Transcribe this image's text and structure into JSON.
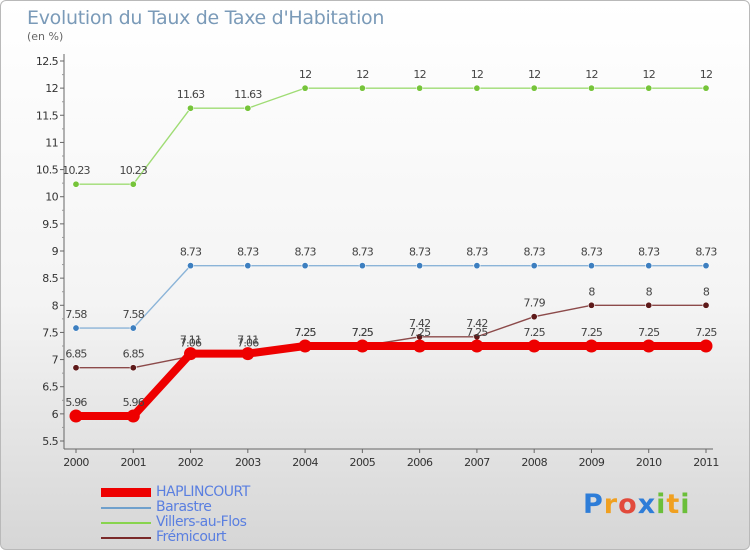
{
  "header": {
    "title": "Evolution du Taux de Taxe d'Habitation",
    "unit": "(en %)"
  },
  "logo": {
    "letters": [
      "P",
      "r",
      "o",
      "x",
      "i",
      "t",
      "i"
    ],
    "colors": [
      "#2e7dd8",
      "#f0a020",
      "#e24a3b",
      "#2e7dd8",
      "#6bbf3a",
      "#f0a020",
      "#6bbf3a"
    ]
  },
  "chart_data": {
    "type": "line",
    "title": "Evolution du Taux de Taxe d'Habitation",
    "ylabel": "(en %)",
    "xlabel": "",
    "categories": [
      "2000",
      "2001",
      "2002",
      "2003",
      "2004",
      "2005",
      "2006",
      "2007",
      "2008",
      "2009",
      "2010",
      "2011"
    ],
    "ylim": [
      5.5,
      12.5
    ],
    "yticks": [
      "5.5",
      "6",
      "6.5",
      "7",
      "7.5",
      "8",
      "8.5",
      "9",
      "9.5",
      "10",
      "10.5",
      "11",
      "11.5",
      "12",
      "12.5"
    ],
    "grid": false,
    "legend": "bottom-left",
    "series": [
      {
        "name": "Villers-au-Flos",
        "color": "#88d44e",
        "line_color": "#9fdc74",
        "marker": "#76c43a",
        "thick": false,
        "values": [
          10.23,
          10.23,
          11.63,
          11.63,
          12,
          12,
          12,
          12,
          12,
          12,
          12,
          12
        ],
        "labels": [
          "10.23",
          "10.23",
          "11.63",
          "11.63",
          "12",
          "12",
          "12",
          "12",
          "12",
          "12",
          "12",
          "12"
        ]
      },
      {
        "name": "Barastre",
        "color": "#6fa0cc",
        "line_color": "#8bb4d8",
        "marker": "#3d7fc0",
        "thick": false,
        "values": [
          7.58,
          7.58,
          8.73,
          8.73,
          8.73,
          8.73,
          8.73,
          8.73,
          8.73,
          8.73,
          8.73,
          8.73
        ],
        "labels": [
          "7.58",
          "7.58",
          "8.73",
          "8.73",
          "8.73",
          "8.73",
          "8.73",
          "8.73",
          "8.73",
          "8.73",
          "8.73",
          "8.73"
        ]
      },
      {
        "name": "Frémicourt",
        "color": "#7a2a2a",
        "line_color": "#8c4a4a",
        "marker": "#5e1a1a",
        "thick": false,
        "values": [
          6.85,
          6.85,
          7.06,
          7.06,
          7.25,
          7.25,
          7.42,
          7.42,
          7.79,
          8,
          8,
          8
        ],
        "labels": [
          "6.85",
          "6.85",
          "7.06",
          "7.06",
          "7.25",
          "7.25",
          "7.42",
          "7.42",
          "7.79",
          "8",
          "8",
          "8"
        ]
      },
      {
        "name": "HAPLINCOURT",
        "color": "#ee0000",
        "line_color": "#ee0000",
        "marker": "#ee0000",
        "thick": true,
        "values": [
          5.96,
          5.96,
          7.11,
          7.11,
          7.25,
          7.25,
          7.25,
          7.25,
          7.25,
          7.25,
          7.25,
          7.25
        ],
        "labels": [
          "5.96",
          "5.96",
          "7.11",
          "7.11",
          "7.25",
          "7.25",
          "7.25",
          "7.25",
          "7.25",
          "7.25",
          "7.25",
          "7.25"
        ]
      }
    ],
    "legend_order": [
      "HAPLINCOURT",
      "Barastre",
      "Villers-au-Flos",
      "Frémicourt"
    ]
  }
}
